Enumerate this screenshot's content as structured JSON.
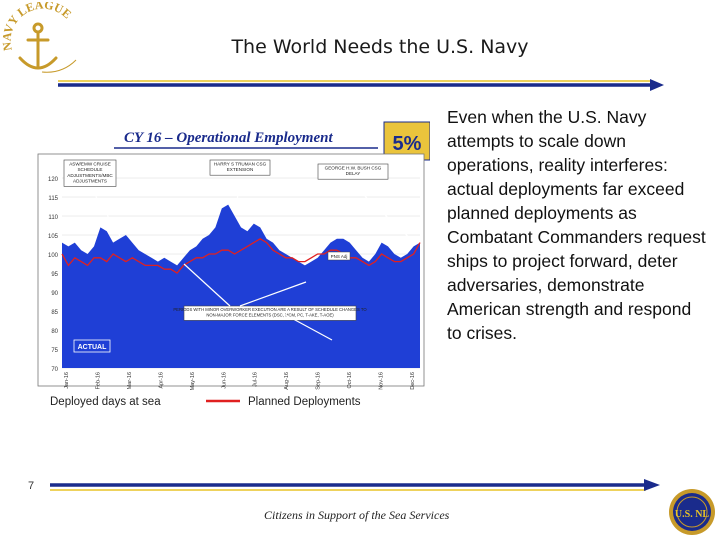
{
  "slide": {
    "title": "The World Needs the U.S. Navy",
    "body": "Even when the U.S. Navy attempts to scale down operations, reality interferes:  actual deployments far exceed planned deployments as Combatant Commanders request ships to  project forward, deter adversaries, demonstrate American strength and respond to crises.",
    "page_number": "7",
    "footer": "Citizens in Support of the Sea Services",
    "logo_text": "NAVY LEAGUE",
    "seal_text": "U.S. NL"
  },
  "chart_data": {
    "type": "area",
    "title": "CY 16 – Operational Employment",
    "badge": "5%",
    "y_ticks": [
      "120",
      "115",
      "110",
      "105",
      "100",
      "95",
      "90",
      "85",
      "80",
      "75",
      "70"
    ],
    "ylim": [
      70,
      120
    ],
    "x_ticks": [
      "Jan-16",
      "Feb-16",
      "Mar-16",
      "Apr-16",
      "May-16",
      "Jun-16",
      "Jul-16",
      "Aug-16",
      "Sep-16",
      "Oct-16",
      "Nov-16",
      "Dec-16"
    ],
    "annotations": {
      "a1": [
        "ASW/EMW CRUISE",
        "SCHEDULE",
        "ADJUSTMENTS/MBC",
        "ADJUSTMENTS"
      ],
      "a2": [
        "HARRY S TRUMAN CSG",
        "EXTENSION"
      ],
      "a3": [
        "GEORGE H.W. BUSH CSG",
        "DELAY"
      ],
      "a4": [
        "PERIODS WITH MINOR OVERWORKER EXECUTION ARE A RESULT OF SCHEDULE CHANGES TO",
        "NON-MAJOR FORCE ELEMENTS (DSC, MCM, PC, T-AKE, T-AOE)"
      ],
      "actual_box": "ACTUAL",
      "plan_tag": "PNS Adj"
    },
    "legend": [
      {
        "label": "Deployed days at sea",
        "color": "#1f3fd6"
      },
      {
        "label": "Planned Deployments",
        "color": "#e02020"
      }
    ],
    "series": [
      {
        "name": "Deployed days at sea",
        "values": [
          103,
          102,
          103,
          101,
          100,
          102,
          107,
          106,
          103,
          104,
          105,
          103,
          101,
          100,
          99,
          98,
          99,
          98,
          97,
          99,
          101,
          102,
          104,
          105,
          107,
          112,
          113,
          110,
          107,
          106,
          108,
          107,
          104,
          103,
          101,
          100,
          99,
          98,
          97,
          98,
          99,
          101,
          103,
          104,
          104,
          103,
          101,
          99,
          98,
          100,
          103,
          102,
          100,
          99,
          100,
          102,
          103
        ]
      },
      {
        "name": "Planned Deployments",
        "values": [
          100,
          97,
          99,
          98,
          97,
          99,
          99,
          98,
          100,
          99,
          98,
          99,
          98,
          97,
          97,
          97,
          96,
          96,
          95,
          97,
          98,
          99,
          99,
          100,
          100,
          101,
          101,
          100,
          101,
          102,
          103,
          104,
          103,
          101,
          100,
          99,
          99,
          98,
          98,
          99,
          100,
          100,
          101,
          101,
          100,
          99,
          99,
          98,
          97,
          98,
          100,
          99,
          98,
          98,
          99,
          100,
          103
        ]
      }
    ]
  }
}
